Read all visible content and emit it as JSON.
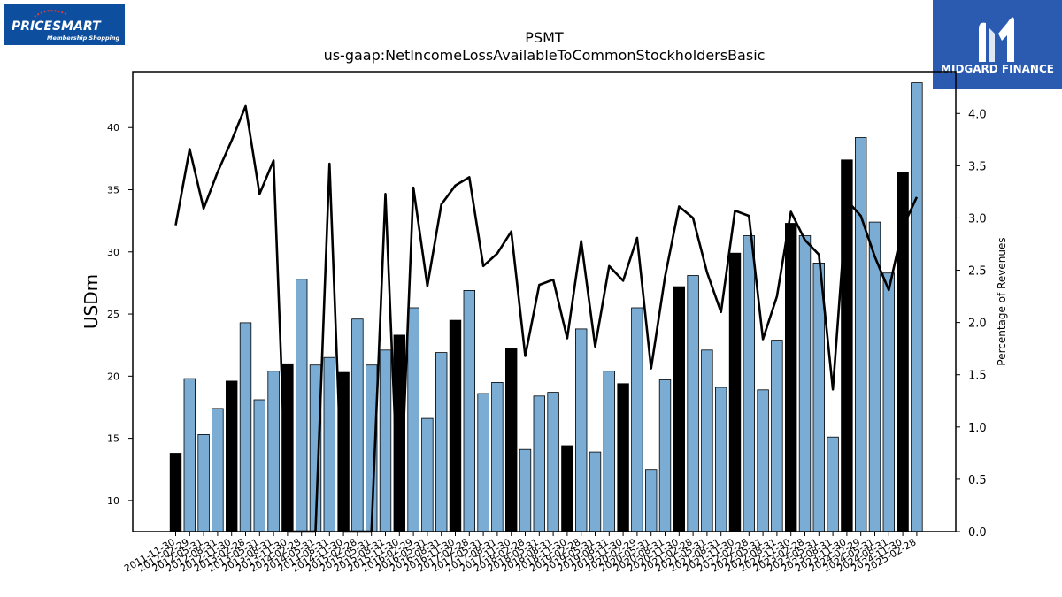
{
  "brand_left": {
    "name": "PRICESMART",
    "tagline": "Membership Shopping"
  },
  "brand_right": {
    "name": "MIDGARD FINANCE"
  },
  "chart_data": {
    "type": "bar",
    "title": "PSMT",
    "subtitle": "us-gaap:NetIncomeLossAvailableToCommonStockholdersBasic",
    "ylabel": "USDm",
    "y2label": "Percentage of Revenues",
    "ylim": [
      7.5,
      44.5
    ],
    "y2lim": [
      0,
      4.4
    ],
    "yticks": [
      10,
      15,
      20,
      25,
      30,
      35,
      40
    ],
    "y2ticks": [
      0.0,
      0.5,
      1.0,
      1.5,
      2.0,
      2.5,
      3.0,
      3.5,
      4.0
    ],
    "colors": {
      "fiscal_year_end": "#000000",
      "quarter": "#7bacd4",
      "line": "#000000"
    },
    "series": [
      {
        "values": [
          13.8,
          19.8,
          15.3,
          17.4,
          19.6,
          24.3,
          18.1,
          20.4,
          21.0,
          27.8,
          20.9,
          21.5,
          20.3,
          24.6,
          20.9,
          22.1,
          23.3,
          25.5,
          16.6,
          21.9,
          24.5,
          26.9,
          18.6,
          19.5,
          22.2,
          14.1,
          18.4,
          18.7,
          14.4,
          23.8,
          13.9,
          20.4,
          19.4,
          25.5,
          12.5,
          19.7,
          27.2,
          28.1,
          22.1,
          19.1,
          29.9,
          31.3,
          18.9,
          22.9,
          32.3,
          31.3,
          29.1,
          15.1,
          37.4,
          39.2,
          32.4,
          28.3,
          36.4,
          43.6
        ]
      },
      {
        "values": [
          2.93,
          3.66,
          3.09,
          3.44,
          3.74,
          4.07,
          3.23,
          3.55,
          0.0,
          0.0,
          0.0,
          3.52,
          0.0,
          0.0,
          0.0,
          3.23,
          0.0,
          3.29,
          2.35,
          3.13,
          3.31,
          3.39,
          2.54,
          2.66,
          2.87,
          1.68,
          2.36,
          2.41,
          1.85,
          2.78,
          1.77,
          2.54,
          2.4,
          2.81,
          1.56,
          2.44,
          3.11,
          3.0,
          2.48,
          2.1,
          3.07,
          3.02,
          1.84,
          2.25,
          3.06,
          2.79,
          2.65,
          1.36,
          3.17,
          3.02,
          2.63,
          2.31,
          2.91,
          3.2
        ]
      }
    ],
    "year_end_flags": [
      true,
      false,
      false,
      false,
      true,
      false,
      false,
      false,
      true,
      false,
      false,
      false,
      true,
      false,
      false,
      false,
      true,
      false,
      false,
      false,
      true,
      false,
      false,
      false,
      true,
      false,
      false,
      false,
      true,
      false,
      false,
      false,
      true,
      false,
      false,
      false,
      true,
      false,
      false,
      false,
      true,
      false,
      false,
      false,
      true,
      false,
      false,
      false,
      true,
      false,
      false,
      false,
      true,
      false
    ],
    "categories": [
      "2011-11-30",
      "2012-02-29",
      "2012-05-31",
      "2012-08-31",
      "2012-11-30",
      "2013-02-28",
      "2013-05-31",
      "2013-08-31",
      "2013-11-30",
      "2014-02-28",
      "2014-05-31",
      "2014-08-31",
      "2014-11-30",
      "2015-02-28",
      "2015-05-31",
      "2015-08-31",
      "2015-11-30",
      "2016-02-29",
      "2016-05-31",
      "2016-08-31",
      "2016-11-30",
      "2017-02-28",
      "2017-05-31",
      "2017-08-31",
      "2017-11-30",
      "2018-02-28",
      "2018-05-31",
      "2018-08-31",
      "2018-11-30",
      "2019-02-28",
      "2019-05-31",
      "2019-08-31",
      "2019-11-30",
      "2020-02-29",
      "2020-05-31",
      "2020-08-31",
      "2020-11-30",
      "2021-02-28",
      "2021-05-31",
      "2021-08-31",
      "2021-11-30",
      "2022-02-28",
      "2022-05-31",
      "2022-08-31",
      "2022-11-30",
      "2023-02-28",
      "2023-05-31",
      "2023-08-31",
      "2023-11-30",
      "2024-02-29",
      "2024-05-31",
      "2024-08-31",
      "2024-11-30",
      "2025-02-28"
    ]
  }
}
